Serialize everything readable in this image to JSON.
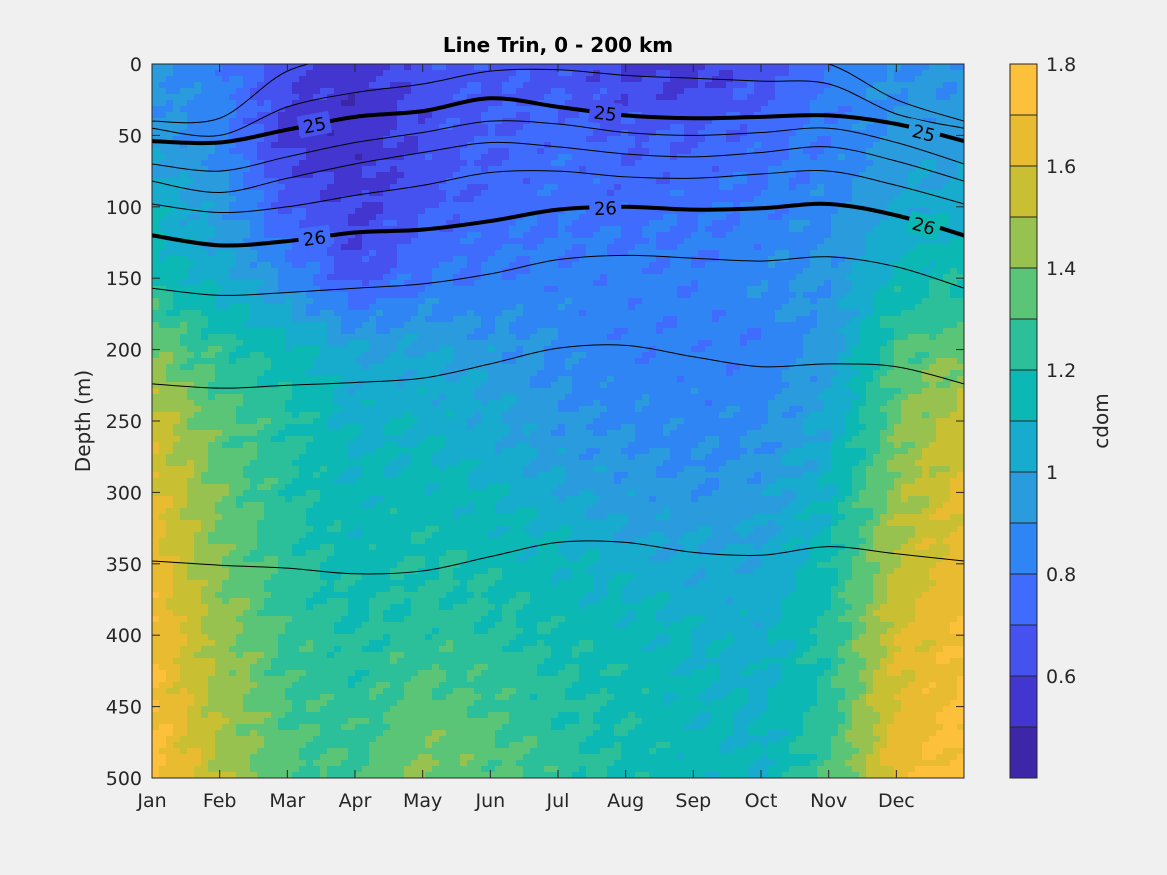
{
  "chart_data": {
    "type": "contour",
    "title": "Line Trin, 0 - 200 km",
    "xlabel": "",
    "ylabel": "Depth (m)",
    "x_categories": [
      "Jan",
      "Feb",
      "Mar",
      "Apr",
      "May",
      "Jun",
      "Jul",
      "Aug",
      "Sep",
      "Oct",
      "Nov",
      "Dec"
    ],
    "y_ticks": [
      0,
      50,
      100,
      150,
      200,
      250,
      300,
      350,
      400,
      450,
      500
    ],
    "y_reversed": true,
    "ylim": [
      0,
      500
    ],
    "colorbar": {
      "label": "cdom",
      "range": [
        0.4,
        1.8
      ],
      "ticks": [
        0.6,
        0.8,
        1,
        1.2,
        1.4,
        1.6,
        1.8
      ],
      "tick_labels": [
        "0.6",
        "0.8",
        "1",
        "1.2",
        "1.4",
        "1.6",
        "1.8"
      ],
      "levels": [
        0.4,
        0.5,
        0.6,
        0.7,
        0.8,
        0.9,
        1.0,
        1.1,
        1.2,
        1.3,
        1.4,
        1.5,
        1.6,
        1.7,
        1.8
      ],
      "colors": [
        "#3e26a8",
        "#4336d0",
        "#4552ef",
        "#3f6cfc",
        "#2f85f3",
        "#2a9bdd",
        "#17acce",
        "#0bb8b4",
        "#2bc09a",
        "#5ac477",
        "#97c250",
        "#c8bf32",
        "#e8bb30",
        "#fdc03b"
      ]
    },
    "cdom_field": {
      "months": [
        "Jan",
        "Feb",
        "Mar",
        "Apr",
        "May",
        "Jun",
        "Jul",
        "Aug",
        "Sep",
        "Oct",
        "Nov",
        "Dec",
        "Jan"
      ],
      "depths_m": [
        0,
        50,
        100,
        150,
        200,
        250,
        300,
        350,
        400,
        450,
        500
      ],
      "values": [
        [
          0.92,
          0.83,
          0.62,
          0.55,
          0.65,
          0.68,
          0.66,
          0.58,
          0.55,
          0.65,
          0.8,
          0.9,
          0.92
        ],
        [
          0.95,
          0.85,
          0.58,
          0.52,
          0.63,
          0.7,
          0.75,
          0.7,
          0.7,
          0.75,
          0.82,
          0.93,
          0.95
        ],
        [
          1.08,
          0.95,
          0.68,
          0.58,
          0.68,
          0.75,
          0.78,
          0.75,
          0.78,
          0.82,
          0.88,
          1.0,
          1.08
        ],
        [
          1.2,
          1.05,
          0.88,
          0.65,
          0.8,
          0.82,
          0.84,
          0.85,
          0.82,
          0.88,
          0.92,
          1.12,
          1.2
        ],
        [
          1.38,
          1.25,
          1.15,
          1.0,
          1.0,
          0.95,
          0.88,
          0.82,
          0.84,
          0.82,
          0.95,
          1.3,
          1.38
        ],
        [
          1.55,
          1.35,
          1.22,
          1.08,
          1.08,
          1.02,
          0.92,
          0.88,
          0.85,
          0.88,
          1.02,
          1.38,
          1.55
        ],
        [
          1.62,
          1.38,
          1.22,
          1.12,
          1.15,
          1.1,
          1.02,
          0.95,
          0.92,
          0.95,
          1.1,
          1.45,
          1.62
        ],
        [
          1.66,
          1.4,
          1.25,
          1.15,
          1.2,
          1.18,
          1.12,
          1.05,
          1.02,
          1.02,
          1.18,
          1.52,
          1.66
        ],
        [
          1.7,
          1.45,
          1.28,
          1.2,
          1.25,
          1.22,
          1.18,
          1.15,
          1.1,
          1.05,
          1.22,
          1.58,
          1.7
        ],
        [
          1.72,
          1.48,
          1.3,
          1.25,
          1.36,
          1.3,
          1.22,
          1.18,
          1.12,
          1.08,
          1.25,
          1.62,
          1.72
        ],
        [
          1.75,
          1.5,
          1.32,
          1.28,
          1.42,
          1.35,
          1.25,
          1.18,
          1.15,
          1.1,
          1.3,
          1.66,
          1.75
        ]
      ]
    },
    "isopycnals": {
      "months": [
        "Jan",
        "Feb",
        "Mar",
        "Apr",
        "May",
        "Jun",
        "Jul",
        "Aug",
        "Sep",
        "Oct",
        "Nov",
        "Dec",
        "Jan"
      ],
      "lines": [
        {
          "level": "25",
          "bold": true,
          "depths": [
            54,
            55,
            46,
            37,
            33,
            24,
            30,
            36,
            38,
            37,
            36,
            42,
            54
          ],
          "label_months": [
            3.4,
            7.7,
            12.5
          ]
        },
        {
          "level": "26",
          "bold": true,
          "depths": [
            120,
            127,
            124,
            118,
            116,
            110,
            102,
            100,
            102,
            101,
            98,
            106,
            120
          ],
          "label_months": [
            3.4,
            7.7,
            12.5
          ]
        },
        {
          "level": "",
          "bold": false,
          "depths": [
            40,
            38,
            5,
            -5,
            -10,
            -15,
            -10,
            -5,
            -5,
            -5,
            0,
            25,
            40
          ]
        },
        {
          "level": "",
          "bold": false,
          "depths": [
            45,
            50,
            30,
            20,
            14,
            5,
            4,
            8,
            10,
            12,
            14,
            35,
            45
          ]
        },
        {
          "level": "",
          "bold": false,
          "depths": [
            70,
            75,
            65,
            55,
            48,
            40,
            42,
            48,
            50,
            48,
            45,
            55,
            70
          ]
        },
        {
          "level": "",
          "bold": false,
          "depths": [
            82,
            90,
            80,
            70,
            62,
            55,
            58,
            63,
            65,
            62,
            58,
            68,
            82
          ]
        },
        {
          "level": "",
          "bold": false,
          "depths": [
            98,
            104,
            100,
            92,
            85,
            76,
            75,
            79,
            80,
            77,
            75,
            85,
            98
          ]
        },
        {
          "level": "",
          "bold": false,
          "depths": [
            157,
            162,
            160,
            157,
            154,
            147,
            137,
            134,
            136,
            138,
            135,
            142,
            157
          ]
        },
        {
          "level": "",
          "bold": false,
          "depths": [
            224,
            227,
            225,
            223,
            220,
            210,
            199,
            197,
            205,
            212,
            210,
            212,
            224
          ]
        },
        {
          "level": "",
          "bold": false,
          "depths": [
            348,
            351,
            353,
            357,
            355,
            345,
            335,
            335,
            342,
            344,
            338,
            343,
            348
          ]
        }
      ]
    }
  }
}
